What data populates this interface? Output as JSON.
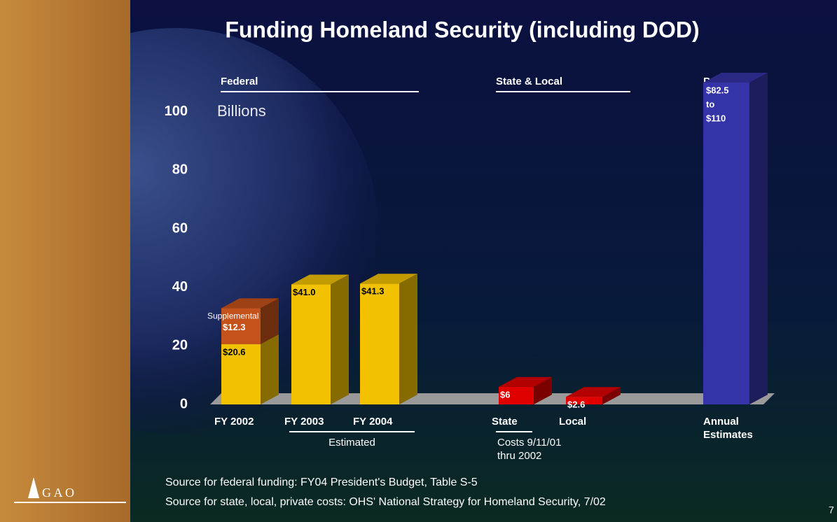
{
  "chart_data": {
    "type": "bar3d",
    "title": "Funding Homeland Security (including DOD)",
    "unit_label": "Billions",
    "ylim": [
      0,
      110
    ],
    "yticks": [
      0,
      20,
      40,
      60,
      80,
      100
    ],
    "groups": [
      {
        "name": "Federal",
        "note_lines": [
          "Estimated"
        ],
        "bars": [
          {
            "category_lines": [
              "FY 2002"
            ],
            "segments": [
              {
                "value": 20.6,
                "value_label": "$20.6",
                "color": "#f2c200"
              },
              {
                "name": "Supplemental",
                "value": 12.3,
                "value_label": "$12.3",
                "color": "#c4521a"
              }
            ]
          },
          {
            "category_lines": [
              "FY 2003"
            ],
            "segments": [
              {
                "value": 41.0,
                "value_label": "$41.0",
                "color": "#f2c200"
              }
            ]
          },
          {
            "category_lines": [
              "FY 2004"
            ],
            "segments": [
              {
                "value": 41.3,
                "value_label": "$41.3",
                "color": "#f2c200"
              }
            ]
          }
        ]
      },
      {
        "name": "State & Local",
        "note_lines": [
          "Costs 9/11/01",
          "thru 2002"
        ],
        "bars": [
          {
            "category_lines": [
              "State"
            ],
            "segments": [
              {
                "value": 6,
                "value_label": "$6",
                "color": "#e00000"
              }
            ]
          },
          {
            "category_lines": [
              "Local"
            ],
            "segments": [
              {
                "value": 2.6,
                "value_label": "$2.6",
                "color": "#e00000"
              }
            ]
          }
        ]
      },
      {
        "name": "Private",
        "bars": [
          {
            "category_lines": [
              "Annual",
              "Estimates"
            ],
            "range": {
              "low": 82.5,
              "high": 110,
              "label_lines": [
                "$82.5",
                "to",
                "$110"
              ],
              "color": "#3434a8"
            }
          }
        ]
      }
    ],
    "sources": [
      "Source for federal funding: FY04 President's Budget, Table S-5",
      "Source for state, local, private costs: OHS' National Strategy for Homeland Security, 7/02"
    ],
    "logo": "G A O",
    "page_number": "7"
  }
}
